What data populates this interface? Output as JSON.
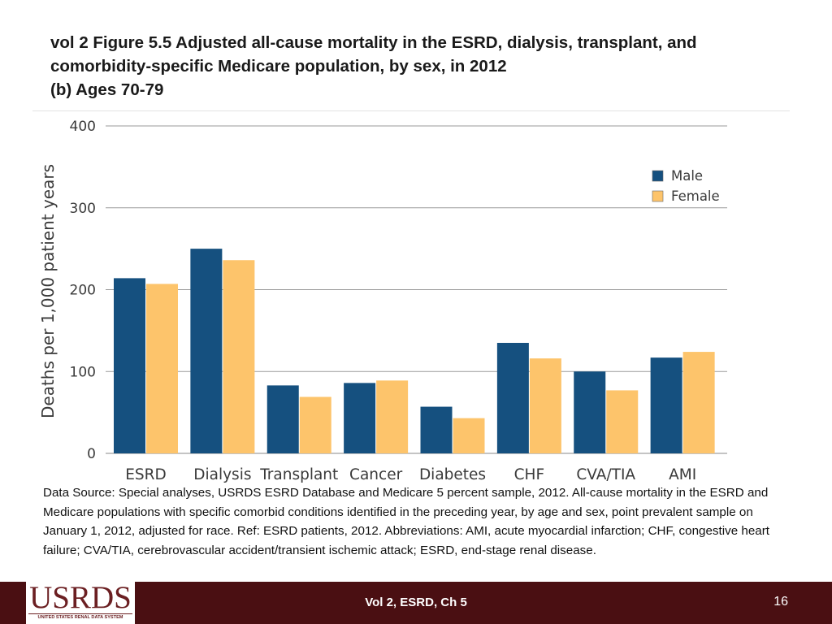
{
  "title": {
    "line1": "vol 2  Figure 5.5 Adjusted all-cause mortality in the ESRD, dialysis, transplant, and",
    "line2": "comorbidity-specific Medicare population, by sex, in 2012",
    "line3": "(b) Ages 70-79"
  },
  "chart_data": {
    "type": "bar",
    "categories": [
      "ESRD",
      "Dialysis",
      "Transplant",
      "Cancer",
      "Diabetes",
      "CHF",
      "CVA/TIA",
      "AMI"
    ],
    "series": [
      {
        "name": "Male",
        "color": "#15507f",
        "values": [
          214,
          250,
          83,
          86,
          57,
          135,
          100,
          117
        ]
      },
      {
        "name": "Female",
        "color": "#fdc46b",
        "values": [
          207,
          236,
          69,
          89,
          43,
          116,
          77,
          124
        ]
      }
    ],
    "ylabel": "Deaths per 1,000 patient years",
    "xlabel": "",
    "ylim": [
      0,
      400
    ],
    "yticks": [
      0,
      100,
      200,
      300,
      400
    ],
    "legend": "top-right",
    "grid": true
  },
  "note": "Data Source: Special analyses, USRDS ESRD Database and Medicare 5 percent sample, 2012. All-cause mortality in the ESRD and Medicare populations with specific comorbid conditions identified in the preceding year, by age and sex, point prevalent sample on January 1, 2012, adjusted for race. Ref: ESRD patients, 2012. Abbreviations: AMI, acute myocardial infarction; CHF, congestive heart failure; CVA/TIA, cerebrovascular accident/transient ischemic attack; ESRD, end-stage renal disease.",
  "footer": {
    "logo_text": "USRDS",
    "logo_subtitle": "UNITED STATES RENAL DATA SYSTEM",
    "center_text": "Vol 2, ESRD, Ch 5",
    "page_number": "16",
    "background_color": "#4a0f12"
  }
}
